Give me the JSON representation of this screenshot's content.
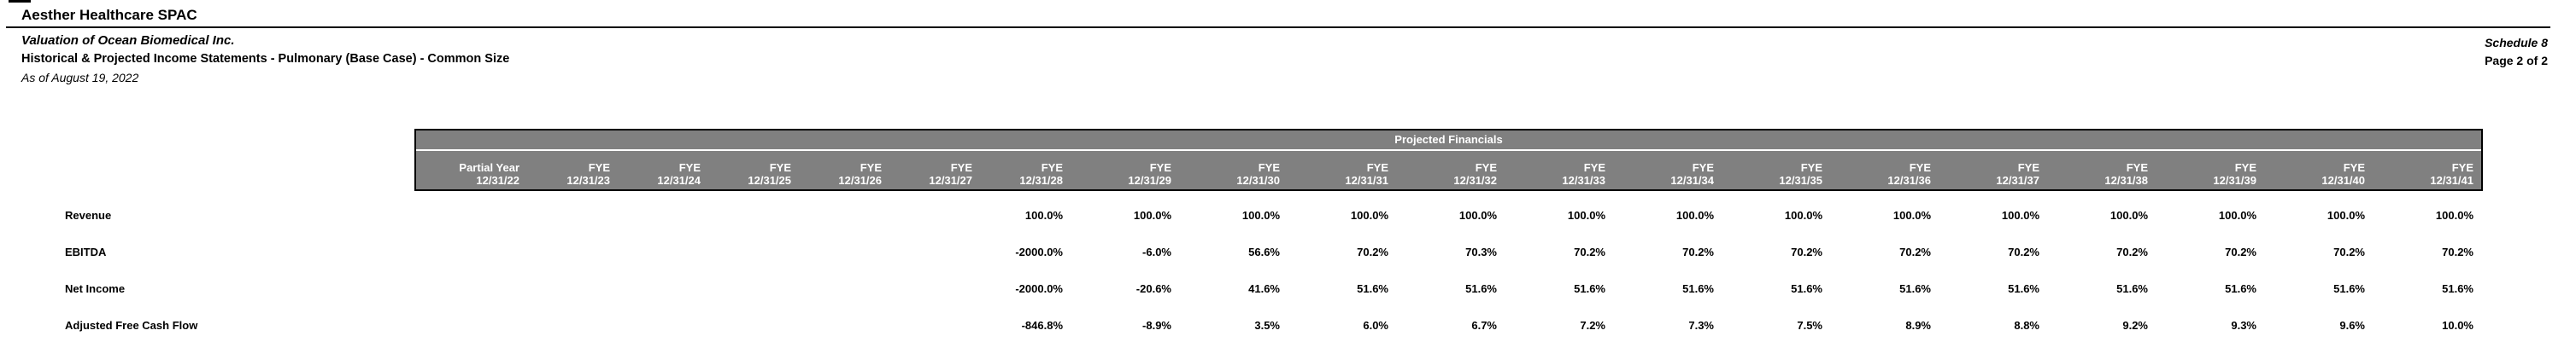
{
  "header": {
    "company": "Aesther Healthcare SPAC",
    "valuation_title": "Valuation of Ocean Biomedical Inc.",
    "statement_title": "Historical & Projected Income Statements - Pulmonary (Base Case) - Common Size",
    "as_of": "As of August 19, 2022",
    "schedule_label": "Schedule 8",
    "page_label": "Page 2 of 2"
  },
  "table": {
    "banner_title": "Projected Financials",
    "columns": [
      {
        "period": "Partial Year",
        "date": "12/31/22"
      },
      {
        "period": "FYE",
        "date": "12/31/23"
      },
      {
        "period": "FYE",
        "date": "12/31/24"
      },
      {
        "period": "FYE",
        "date": "12/31/25"
      },
      {
        "period": "FYE",
        "date": "12/31/26"
      },
      {
        "period": "FYE",
        "date": "12/31/27"
      },
      {
        "period": "FYE",
        "date": "12/31/28"
      },
      {
        "period": "FYE",
        "date": "12/31/29"
      },
      {
        "period": "FYE",
        "date": "12/31/30"
      },
      {
        "period": "FYE",
        "date": "12/31/31"
      },
      {
        "period": "FYE",
        "date": "12/31/32"
      },
      {
        "period": "FYE",
        "date": "12/31/33"
      },
      {
        "period": "FYE",
        "date": "12/31/34"
      },
      {
        "period": "FYE",
        "date": "12/31/35"
      },
      {
        "period": "FYE",
        "date": "12/31/36"
      },
      {
        "period": "FYE",
        "date": "12/31/37"
      },
      {
        "period": "FYE",
        "date": "12/31/38"
      },
      {
        "period": "FYE",
        "date": "12/31/39"
      },
      {
        "period": "FYE",
        "date": "12/31/40"
      },
      {
        "period": "FYE",
        "date": "12/31/41"
      }
    ],
    "rows": [
      {
        "label": "Revenue",
        "values": [
          "",
          "",
          "",
          "",
          "",
          "",
          "100.0%",
          "100.0%",
          "100.0%",
          "100.0%",
          "100.0%",
          "100.0%",
          "100.0%",
          "100.0%",
          "100.0%",
          "100.0%",
          "100.0%",
          "100.0%",
          "100.0%",
          "100.0%"
        ]
      },
      {
        "label": "EBITDA",
        "values": [
          "",
          "",
          "",
          "",
          "",
          "",
          "-2000.0%",
          "-6.0%",
          "56.6%",
          "70.2%",
          "70.3%",
          "70.2%",
          "70.2%",
          "70.2%",
          "70.2%",
          "70.2%",
          "70.2%",
          "70.2%",
          "70.2%",
          "70.2%"
        ]
      },
      {
        "label": "Net Income",
        "values": [
          "",
          "",
          "",
          "",
          "",
          "",
          "-2000.0%",
          "-20.6%",
          "41.6%",
          "51.6%",
          "51.6%",
          "51.6%",
          "51.6%",
          "51.6%",
          "51.6%",
          "51.6%",
          "51.6%",
          "51.6%",
          "51.6%",
          "51.6%"
        ]
      },
      {
        "label": "Adjusted Free Cash Flow",
        "values": [
          "",
          "",
          "",
          "",
          "",
          "",
          "-846.8%",
          "-8.9%",
          "3.5%",
          "6.0%",
          "6.7%",
          "7.2%",
          "7.3%",
          "7.5%",
          "8.9%",
          "8.8%",
          "9.2%",
          "9.3%",
          "9.6%",
          "10.0%"
        ]
      }
    ]
  },
  "colors": {
    "header_bg": "#808080",
    "header_text": "#ffffff",
    "text": "#000000",
    "rule": "#000000",
    "banner_separator": "#ffffff"
  }
}
